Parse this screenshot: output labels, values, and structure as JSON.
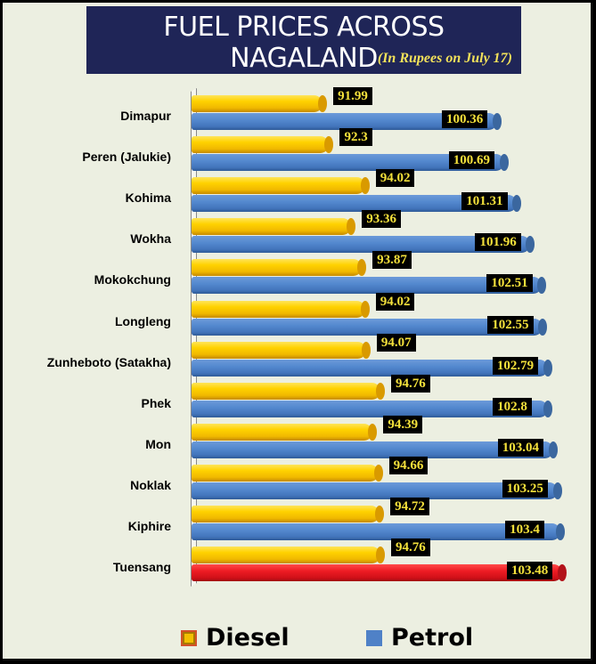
{
  "header": {
    "title": "FUEL PRICES ACROSS NAGALAND",
    "subtitle": "(In Rupees on July 17)"
  },
  "legend": [
    {
      "name": "Diesel",
      "color": "#F2BF00"
    },
    {
      "name": "Petrol",
      "color": "#4F81C7"
    }
  ],
  "colors": {
    "diesel": "#F2BF00",
    "petrol": "#4F81C7",
    "highlight": "#EE1C24",
    "title_bg": "#1F2557",
    "background": "#ECEFE1"
  },
  "chart_data": {
    "type": "bar",
    "orientation": "horizontal",
    "title": "FUEL PRICES ACROSS NAGALAND",
    "subtitle": "(In Rupees on July 17)",
    "xlabel": "",
    "ylabel": "",
    "grid": false,
    "legend_position": "bottom",
    "xlim": [
      85.7,
      104
    ],
    "categories": [
      "Dimapur",
      "Peren (Jalukie)",
      "Kohima",
      "Wokha",
      "Mokokchung",
      "Longleng",
      "Zunheboto (Satakha)",
      "Phek",
      "Mon",
      "Noklak",
      "Kiphire",
      "Tuensang"
    ],
    "series": [
      {
        "name": "Diesel",
        "values": [
          91.99,
          92.3,
          94.02,
          93.36,
          93.87,
          94.02,
          94.07,
          94.76,
          94.39,
          94.66,
          94.72,
          94.76
        ]
      },
      {
        "name": "Petrol",
        "values": [
          100.36,
          100.69,
          101.31,
          101.96,
          102.51,
          102.55,
          102.79,
          102.8,
          103.04,
          103.25,
          103.4,
          103.48
        ]
      }
    ],
    "labels": {
      "Diesel": [
        "91.99",
        "92.3",
        "94.02",
        "93.36",
        "93.87",
        "94.02",
        "94.07",
        "94.76",
        "94.39",
        "94.66",
        "94.72",
        "94.76"
      ],
      "Petrol": [
        "100.36",
        "100.69",
        "101.31",
        "101.96",
        "102.51",
        "102.55",
        "102.79",
        "102.8",
        "103.04",
        "103.25",
        "103.4",
        "103.48"
      ]
    },
    "highlight": {
      "category": "Tuensang",
      "series": "Petrol",
      "color": "#EE1C24"
    }
  }
}
